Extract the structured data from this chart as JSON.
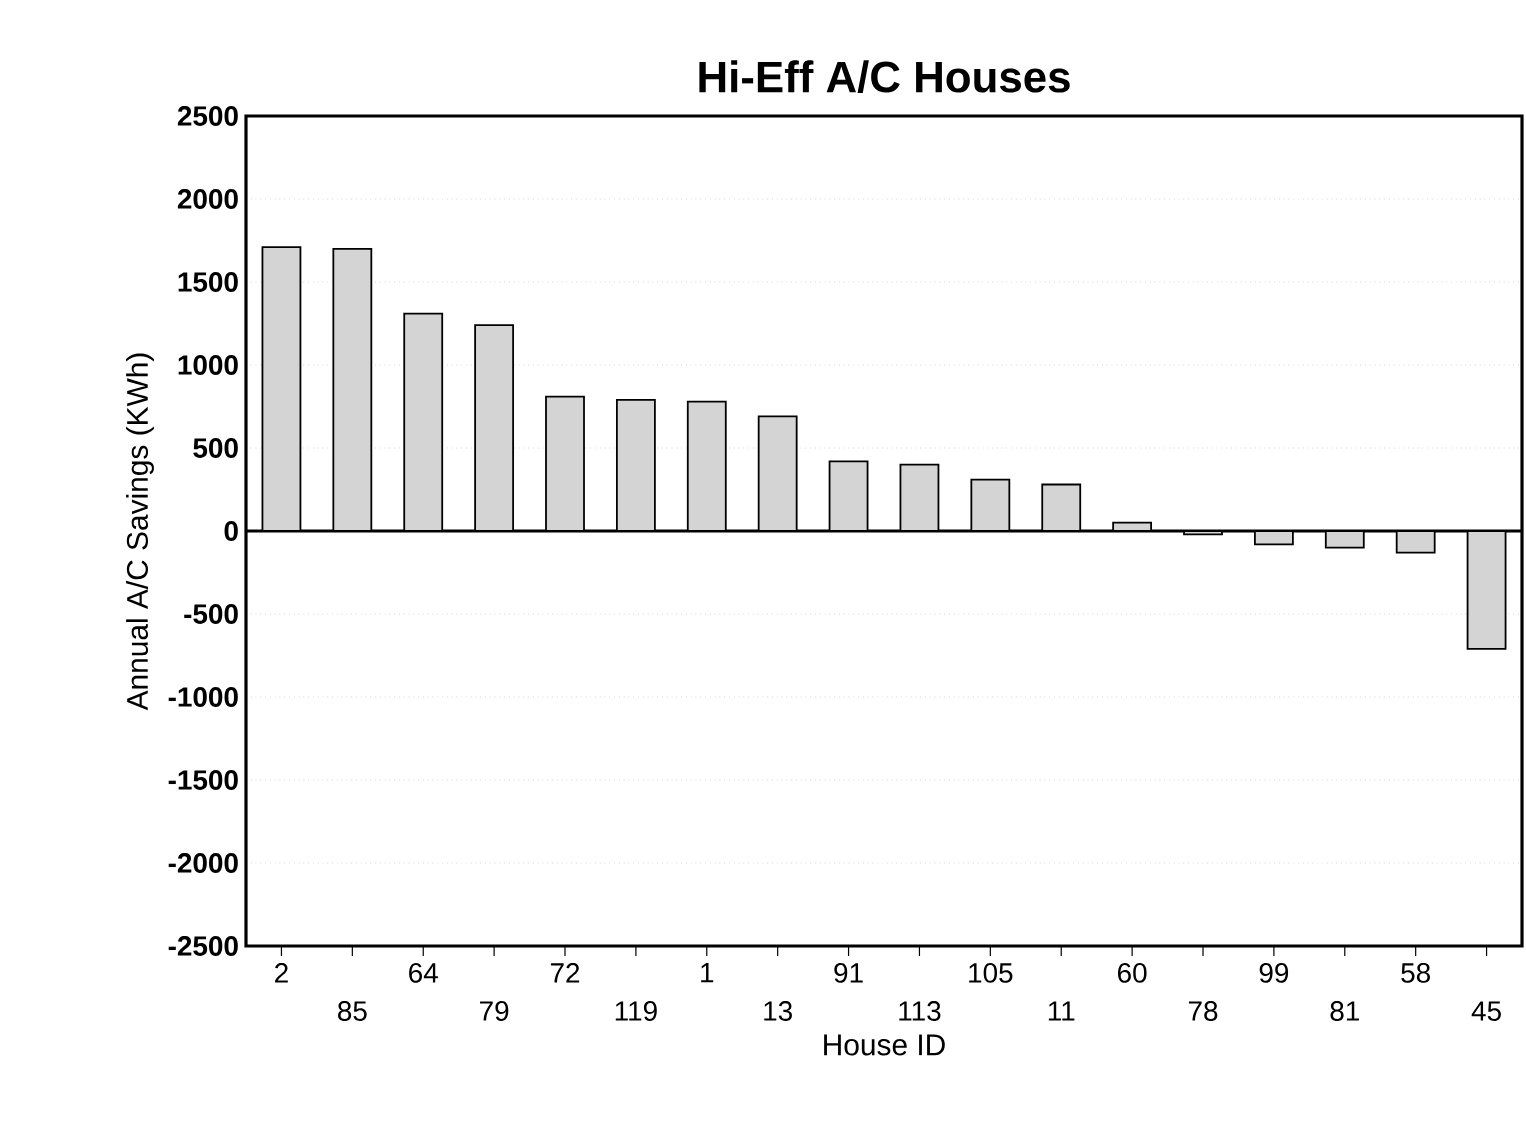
{
  "chart_data": {
    "type": "bar",
    "title": "Hi-Eff A/C Houses",
    "xlabel": "House ID",
    "ylabel": "Annual A/C Savings (KWh)",
    "categories": [
      "2",
      "85",
      "64",
      "79",
      "72",
      "119",
      "1",
      "13",
      "91",
      "113",
      "105",
      "11",
      "60",
      "78",
      "99",
      "81",
      "58",
      "45"
    ],
    "values": [
      1710,
      1700,
      1310,
      1240,
      810,
      790,
      780,
      690,
      420,
      400,
      310,
      280,
      50,
      -20,
      -80,
      -100,
      -130,
      -710
    ],
    "color": "#d4d4d4",
    "ylim": [
      -2500,
      2500
    ],
    "yticks": [
      -2500,
      -2000,
      -1500,
      -1000,
      -500,
      0,
      500,
      1000,
      1500,
      2000,
      2500
    ],
    "grid": "y"
  }
}
